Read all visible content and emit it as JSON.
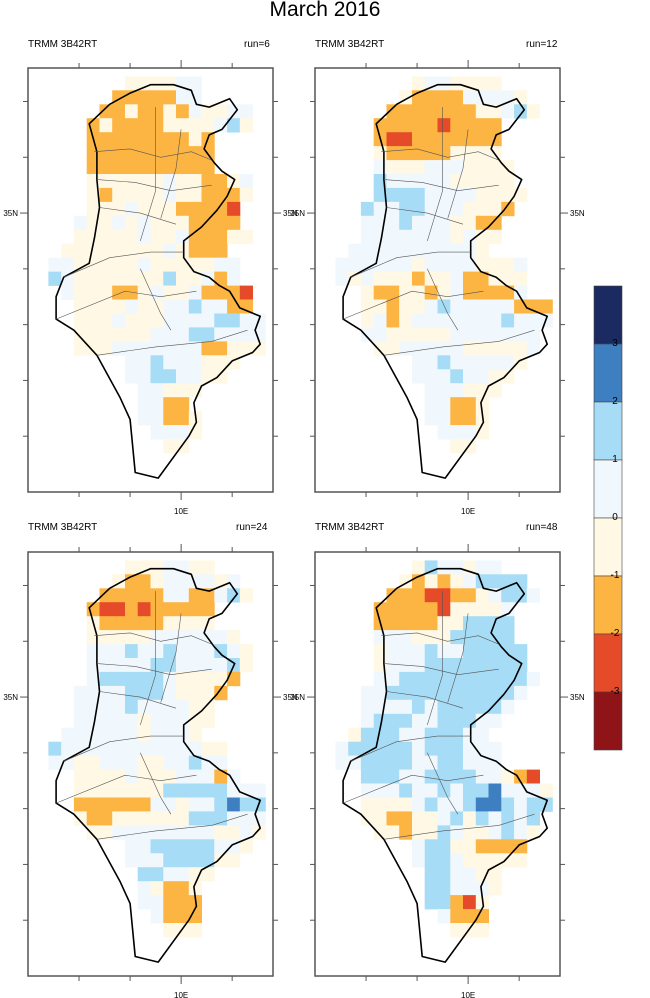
{
  "title": "March 2016",
  "chart_data": {
    "type": "heatmap",
    "title": "March 2016",
    "grid": {
      "lon_start": 7.4,
      "lat_start": 37.45,
      "cell_deg": 0.25,
      "ncols": 17,
      "nrows": 28,
      "legend_codes": {
        ".": null,
        "c": "-3 to -2",
        "b": "-2 to -1",
        "a": "-1 to 0",
        "p": "0 to 1",
        "q": "1 to 2",
        "r": "2 to 3"
      }
    },
    "x_ticks": [
      "",
      "",
      "10E",
      ""
    ],
    "x_tick_lons": [
      8,
      9,
      10,
      11
    ],
    "y_ticks": [
      "",
      "",
      "35N",
      "",
      "",
      "",
      ""
    ],
    "y_tick_lats": [
      37,
      36,
      35,
      34,
      33,
      32,
      31
    ],
    "lon_range": [
      7.0,
      11.8
    ],
    "lat_range": [
      30.0,
      37.6
    ],
    "panels": [
      {
        "left_label": "TRMM 3B42RT",
        "right_label": "run=6",
        "rows": [
          "......aaaapp.....",
          ".....bbbbbpp.....",
          "....bbabbabpaapp.",
          "...babbbbaaaapqa.",
          "...bbbbbbbbab....",
          "...bbbbbbbbbb....",
          "...bbbbbbbbbb....",
          "...aaaaaapaabbap.",
          "...abaaaapaabbba.",
          "...aaapaaabbbbc..",
          "..paapapaaabbbb..",
          "..aaaaapaapbbbaa.",
          ".aaaaaaaapabbb...",
          "ppaaaaapaaaaapp..",
          "qpaaaaaaaqaapbp..",
          ".paaabbapaapbbbc.",
          "..aaaapaappqppbb.",
          "..aaapaaappppqqpp",
          "..aaaaaapppqqpppp",
          "..aaapppppppbbaaa",
          "......ppqpppaaa..",
          "......ppqqppaa...",
          ".......ppaaa.....",
          ".......ppbb......",
          ".......ppbba.....",
          "........pppa.....",
          ".........aa......",
          "................."
        ]
      },
      {
        "left_label": "TRMM 3B42RT",
        "right_label": "run=12",
        "rows": [
          "......appaaaa....",
          ".....abbbbppppa..",
          "....bbbbbbbaapqa.",
          "...bbbbbcbbbb....",
          "...bccbbbbbbb....",
          "...abbbbbaaaa....",
          "...paaapppaaaa...",
          "...qpppppaaaaa...",
          "...qqqqppppaaaa..",
          "..qppqqpppaaab...",
          "..pppqpppaabb....",
          "..pppppppapaa....",
          ".ppppppppppa.....",
          "ppppppappppaaap..",
          "papaaabaapbbaaa..",
          "..abbaabapbbbbp..",
          "..aabaapqpppppbbb",
          "..apbapppppppqppp",
          "..ppaaaaappppppp.",
          "...aapppppaaaaap.",
          "......ppqpppppa..",
          "......pppqppaa...",
          ".......pppaaa....",
          ".......ppbba.....",
          ".......ppbba.....",
          "........pppa.....",
          ".........aa......",
          "................."
        ]
      },
      {
        "left_label": "TRMM 3B42RT",
        "right_label": "run=24",
        "rows": [
          "......aaappaa....",
          ".....abbappppap..",
          "....bbbbbppbbpqa.",
          "...bccbcbbbbb....",
          "...abbbbbaaaa....",
          "...aaaaappppppa..",
          "...pppqppqpppqpa.",
          "...pppppqqppppqa.",
          "...pqqqqqpaaaab..",
          "..ppppqqqpaaab...",
          "..ppppqppppaa....",
          "..pppppapppaa....",
          ".ppppppapppa.....",
          "qpppppppppppaa...",
          "ppaapppaappqpp...",
          "..aaaapaaapppbp..",
          "..aaaaaaaqqqqqppp",
          "..bbbbbbppappqrqq",
          "..abbaaaaaaqqqppp",
          "...aappppppppaapa",
          "......ppqqqqqppa.",
          "......pppqqqqaa..",
          ".......qqppaa....",
          ".......pabba.....",
          ".......ppbbb.....",
          "........pbbb.....",
          ".........aaa.....",
          "................."
        ]
      },
      {
        "left_label": "TRMM 3B42RT",
        "right_label": "run=48",
        "rows": [
          "......aqppapp....",
          ".....ababapqqqq..",
          "....bbbccbbapqqp.",
          "...bbbbbcaaaap...",
          "...bbbbbaaqqqq...",
          "...pppaaaqqqqq...",
          "...apppqppqqqqq..",
          "...apppqqqqqqqq..",
          "...ppqqqqqqqqqqp.",
          "..ppqqqqqqqqqqp..",
          "..ppppqpqqqqqp...",
          "..pqqqppqqqpp....",
          ".aqqqppqqqpp.....",
          "pqqqqqpqqqppp....",
          "ppqqqqppqqppp....",
          "..qqqppqqqqppabc.",
          "..pppqppqpqqrpppa",
          "..aaaapqppqrrqpqq",
          "..aabbaapqaqpqpq.",
          "...aabaaqpaapqpa.",
          "......pqqaabbbb..",
          "......pqqpaaaaa..",
          ".......qqppaa....",
          ".......qqpppa....",
          ".......qqbca.....",
          "........pbbb.....",
          ".........aaa.....",
          "................."
        ]
      }
    ],
    "colorbar": {
      "labels": [
        "3",
        "2",
        "1",
        "0",
        "-1",
        "-2",
        "-3"
      ],
      "colors": [
        "#1b2a60",
        "#3d7fc1",
        "#a6dcf5",
        "#f1f8fd",
        "#fff8e4",
        "#fcb543",
        "#e64b29",
        "#8f1417"
      ]
    },
    "colors": {
      "c": "#e64b29",
      "b": "#fcb543",
      "a": "#fff8e4",
      "p": "#f1f8fd",
      "q": "#a6dcf5",
      "r": "#3d7fc1"
    }
  }
}
